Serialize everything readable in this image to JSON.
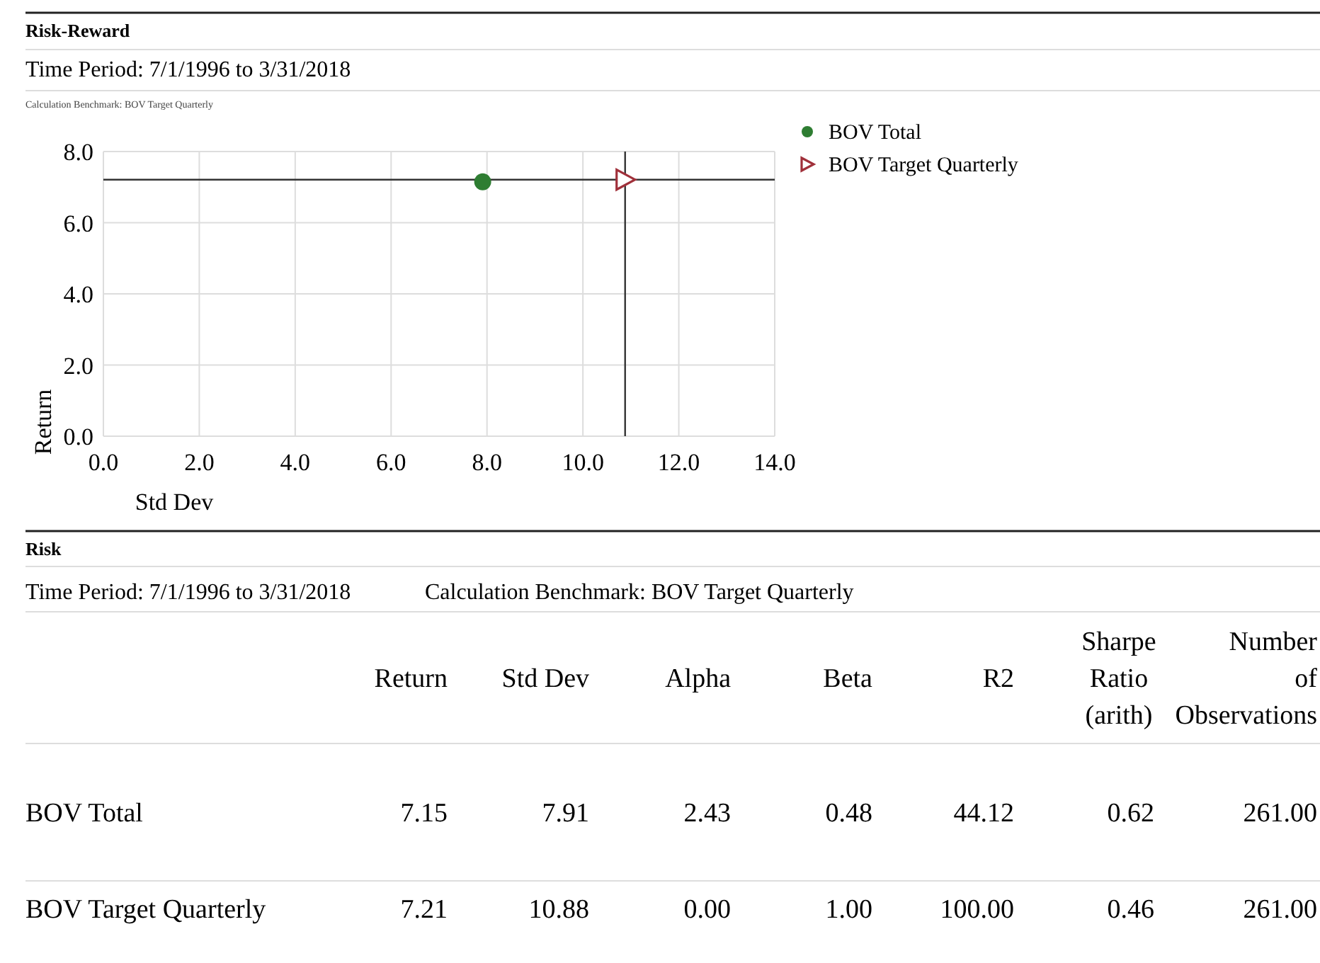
{
  "chart_data": [
    {
      "type": "scatter",
      "title": "Risk-Reward",
      "subtitle": "Time Period: 7/1/1996 to 3/31/2018",
      "annotations": [
        "Calculation Benchmark: BOV Target Quarterly"
      ],
      "xlabel": "Std Dev",
      "ylabel": "Return",
      "xlim": [
        0,
        14
      ],
      "ylim": [
        0,
        8
      ],
      "xticks": [
        {
          "value": 0,
          "label": "0.0"
        },
        {
          "value": 2,
          "label": "2.0"
        },
        {
          "value": 4,
          "label": "4.0"
        },
        {
          "value": 6,
          "label": "6.0"
        },
        {
          "value": 8,
          "label": "8.0"
        },
        {
          "value": 10,
          "label": "10.0"
        },
        {
          "value": 12,
          "label": "12.0"
        },
        {
          "value": 14,
          "label": "14.0"
        }
      ],
      "yticks": [
        {
          "value": 0,
          "label": "0.0"
        },
        {
          "value": 2,
          "label": "2.0"
        },
        {
          "value": 4,
          "label": "4.0"
        },
        {
          "value": 6,
          "label": "6.0"
        },
        {
          "value": 8,
          "label": "8.0"
        }
      ],
      "grid": true,
      "legend": "right",
      "ref_lines": [
        {
          "axis": "y",
          "value": 7.21,
          "color": "#333333"
        },
        {
          "axis": "x",
          "value": 10.88,
          "color": "#333333"
        }
      ],
      "series": [
        {
          "name": "BOV Total",
          "color": "#2e7d32",
          "marker": "circle",
          "x": [
            7.91
          ],
          "values": [
            7.15
          ]
        },
        {
          "name": "BOV Target Quarterly",
          "color": "#a0303a",
          "marker": "triangle",
          "x": [
            10.88
          ],
          "values": [
            7.21
          ]
        }
      ]
    },
    {
      "type": "other",
      "title": "Risk",
      "subtitle": "Time Period: 7/1/1996 to 3/31/2018",
      "annotations": [
        "Calculation Benchmark: BOV Target Quarterly"
      ],
      "categories": [
        "Return",
        "Std Dev",
        "Alpha",
        "Beta",
        "R2",
        "Sharpe Ratio (arith)",
        "Number of Observations"
      ],
      "y_categories": [
        "BOV Total",
        "BOV Target Quarterly"
      ],
      "cell_labels": [
        [
          "7.15",
          "7.91",
          "2.43",
          "0.48",
          "44.12",
          "0.62",
          "261.00"
        ],
        [
          "7.21",
          "10.88",
          "0.00",
          "1.00",
          "100.00",
          "0.46",
          "261.00"
        ]
      ]
    }
  ]
}
